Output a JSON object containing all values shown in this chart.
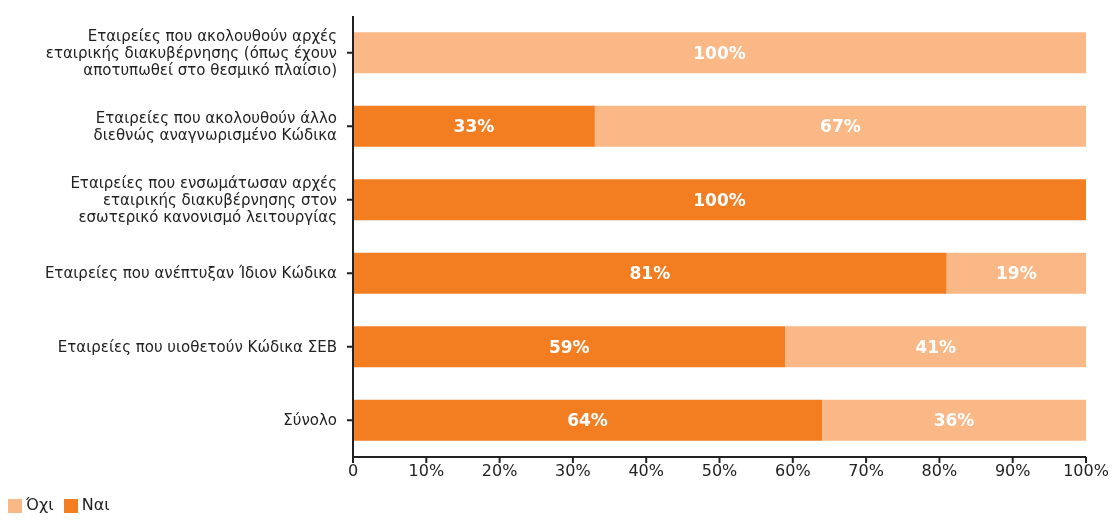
{
  "chart_data": {
    "type": "bar",
    "orientation": "horizontal",
    "stacked": true,
    "categories": [
      "Εταιρείες που ακολουθούν αρχές εταιρικής διακυβέρνησης (όπως έχουν αποτυπωθεί στο θεσμικό πλαίσιο)",
      "Εταιρείες που ακολουθούν άλλο διεθνώς αναγνωρισμένο Κώδικα",
      "Εταιρείες που ενσωμάτωσαν αρχές εταιρικής διακυβέρνησης στον εσωτερικό κανονισμό λειτουργίας",
      "Εταιρείες που ανέπτυξαν Ίδιον Κώδικα",
      "Εταιρείες που υιοθετούν Κώδικα ΣΕΒ",
      "Σύνολο"
    ],
    "series": [
      {
        "name": "Ναι",
        "color": "#f37e22",
        "values": [
          0,
          33,
          100,
          81,
          59,
          64
        ],
        "value_labels": [
          null,
          "33%",
          "100%",
          "81%",
          "59%",
          "64%"
        ]
      },
      {
        "name": "Όχι",
        "color": "#f9b886",
        "values": [
          100,
          67,
          0,
          19,
          41,
          36
        ],
        "value_labels": [
          "100%",
          "67%",
          null,
          "19%",
          "41%",
          "36%"
        ]
      }
    ],
    "xlim": [
      0,
      100
    ],
    "xticks": [
      {
        "value": 0,
        "label": "0"
      },
      {
        "value": 10,
        "label": "10%"
      },
      {
        "value": 20,
        "label": "20%"
      },
      {
        "value": 30,
        "label": "30%"
      },
      {
        "value": 40,
        "label": "40%"
      },
      {
        "value": 50,
        "label": "50%"
      },
      {
        "value": 60,
        "label": "60%"
      },
      {
        "value": 70,
        "label": "70%"
      },
      {
        "value": 80,
        "label": "80%"
      },
      {
        "value": 90,
        "label": "90%"
      },
      {
        "value": 100,
        "label": "100%"
      }
    ],
    "grid": false,
    "legend": "bottom left"
  }
}
